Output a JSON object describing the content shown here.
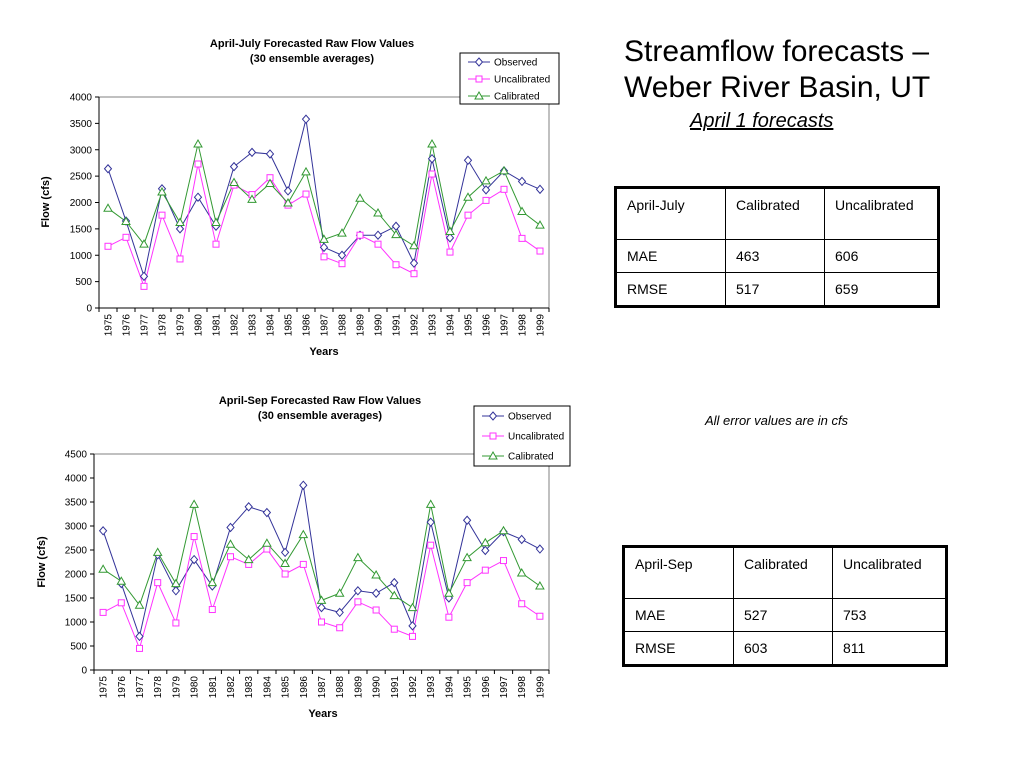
{
  "slide": {
    "title": "Streamflow forecasts – Weber River Basin, UT",
    "subtitle": "April 1 forecasts",
    "note": "All error values are in cfs"
  },
  "colors": {
    "observed": "#333399",
    "uncalibrated": "#FF33FF",
    "calibrated": "#339933"
  },
  "tables": [
    {
      "header": [
        "April-July",
        "Calibrated",
        "Uncalibrated"
      ],
      "rows": [
        [
          "MAE",
          "463",
          "606"
        ],
        [
          "RMSE",
          "517",
          "659"
        ]
      ]
    },
    {
      "header": [
        "April-Sep",
        "Calibrated",
        "Uncalibrated"
      ],
      "rows": [
        [
          "MAE",
          "527",
          "753"
        ],
        [
          "RMSE",
          "603",
          "811"
        ]
      ]
    }
  ],
  "chart_data": [
    {
      "type": "line",
      "title": "April-July Forecasted Raw Flow Values",
      "subtitle": "(30 ensemble averages)",
      "xlabel": "Years",
      "ylabel": "Flow (cfs)",
      "ylim": [
        0,
        4000
      ],
      "yticks": [
        0,
        500,
        1000,
        1500,
        2000,
        2500,
        3000,
        3500,
        4000
      ],
      "grid": false,
      "legend": "top-right",
      "categories": [
        "1975",
        "1976",
        "1977",
        "1978",
        "1979",
        "1980",
        "1981",
        "1982",
        "1983",
        "1984",
        "1985",
        "1986",
        "1987",
        "1988",
        "1989",
        "1990",
        "1991",
        "1992",
        "1993",
        "1994",
        "1995",
        "1996",
        "1997",
        "1998",
        "1999"
      ],
      "series": [
        {
          "name": "Observed",
          "marker": "diamond",
          "color": "#333399",
          "values": [
            2640,
            1650,
            600,
            2260,
            1500,
            2100,
            1550,
            2680,
            2950,
            2920,
            2220,
            3580,
            1150,
            1000,
            1380,
            1380,
            1550,
            850,
            2830,
            1330,
            2800,
            2240,
            2600,
            2400,
            2250
          ]
        },
        {
          "name": "Uncalibrated",
          "marker": "square",
          "color": "#FF33FF",
          "values": [
            1170,
            1340,
            410,
            1760,
            930,
            2730,
            1210,
            2330,
            2150,
            2470,
            1950,
            2160,
            970,
            840,
            1380,
            1210,
            820,
            650,
            2540,
            1060,
            1760,
            2040,
            2250,
            1320,
            1080
          ]
        },
        {
          "name": "Calibrated",
          "marker": "triangle",
          "color": "#339933",
          "values": [
            1890,
            1640,
            1210,
            2200,
            1620,
            3110,
            1620,
            2380,
            2060,
            2360,
            1990,
            2580,
            1300,
            1420,
            2080,
            1800,
            1390,
            1180,
            3110,
            1450,
            2100,
            2410,
            2600,
            1830,
            1570
          ]
        }
      ]
    },
    {
      "type": "line",
      "title": "April-Sep Forecasted Raw Flow Values",
      "subtitle": "(30 ensemble averages)",
      "xlabel": "Years",
      "ylabel": "Flow (cfs)",
      "ylim": [
        0,
        4500
      ],
      "yticks": [
        0,
        500,
        1000,
        1500,
        2000,
        2500,
        3000,
        3500,
        4000,
        4500
      ],
      "grid": false,
      "legend": "top-right",
      "categories": [
        "1975",
        "1976",
        "1977",
        "1978",
        "1979",
        "1980",
        "1981",
        "1982",
        "1983",
        "1984",
        "1985",
        "1986",
        "1987",
        "1988",
        "1989",
        "1990",
        "1991",
        "1992",
        "1993",
        "1994",
        "1995",
        "1996",
        "1997",
        "1998",
        "1999"
      ],
      "series": [
        {
          "name": "Observed",
          "marker": "diamond",
          "color": "#333399",
          "values": [
            2900,
            1800,
            700,
            2400,
            1650,
            2300,
            1750,
            2970,
            3400,
            3280,
            2450,
            3850,
            1300,
            1200,
            1650,
            1600,
            1820,
            920,
            3080,
            1500,
            3120,
            2490,
            2880,
            2720,
            2520
          ]
        },
        {
          "name": "Uncalibrated",
          "marker": "square",
          "color": "#FF33FF",
          "values": [
            1200,
            1400,
            450,
            1820,
            980,
            2780,
            1260,
            2360,
            2200,
            2520,
            2000,
            2200,
            1000,
            880,
            1420,
            1250,
            850,
            700,
            2600,
            1100,
            1820,
            2080,
            2280,
            1380,
            1120
          ]
        },
        {
          "name": "Calibrated",
          "marker": "triangle",
          "color": "#339933",
          "values": [
            2100,
            1850,
            1350,
            2450,
            1800,
            3450,
            1820,
            2620,
            2300,
            2640,
            2220,
            2820,
            1450,
            1600,
            2340,
            1980,
            1550,
            1300,
            3450,
            1600,
            2340,
            2650,
            2900,
            2020,
            1750
          ]
        }
      ]
    }
  ]
}
